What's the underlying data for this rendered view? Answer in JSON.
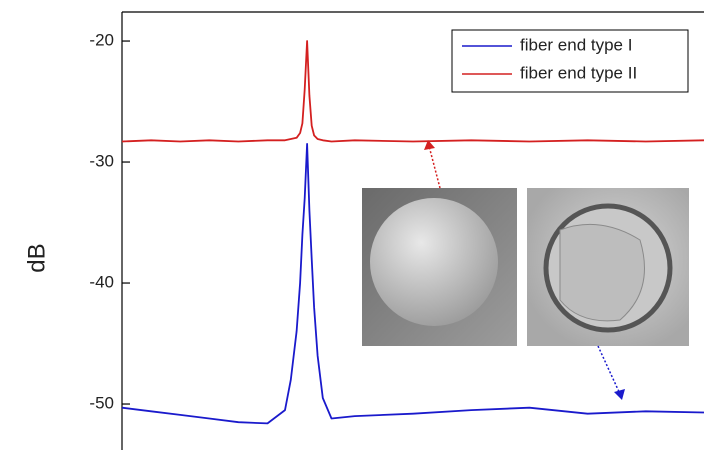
{
  "chart_data": {
    "type": "line",
    "y_label": "dB",
    "x": [
      0,
      5,
      10,
      15,
      20,
      25,
      28,
      29,
      30,
      30.6,
      31,
      31.4,
      31.8,
      32.2,
      32.6,
      33,
      33.6,
      34.5,
      36,
      40,
      50,
      60,
      70,
      80,
      90,
      100
    ],
    "xlim": [
      0,
      100
    ],
    "ylim": [
      -53.8,
      -17.6
    ],
    "yticks": [
      -50,
      -40,
      -30,
      -20
    ],
    "legend": "upper right",
    "series": [
      {
        "name": "fiber end type I",
        "color": "#1a1acc",
        "values": [
          -50.3,
          -50.6,
          -50.9,
          -51.2,
          -51.5,
          -51.6,
          -50.5,
          -48,
          -44,
          -40,
          -36,
          -33,
          -28.5,
          -34,
          -38,
          -42,
          -46,
          -49.5,
          -51.2,
          -51,
          -50.8,
          -50.5,
          -50.3,
          -50.8,
          -50.6,
          -50.7
        ]
      },
      {
        "name": "fiber end type II",
        "color": "#d42020",
        "values": [
          -28.3,
          -28.2,
          -28.3,
          -28.2,
          -28.3,
          -28.2,
          -28.2,
          -28.1,
          -28,
          -27.6,
          -26.8,
          -24,
          -20,
          -24.5,
          -27,
          -27.8,
          -28.1,
          -28.2,
          -28.3,
          -28.2,
          -28.3,
          -28.2,
          -28.3,
          -28.2,
          -28.3,
          -28.2
        ]
      }
    ]
  }
}
